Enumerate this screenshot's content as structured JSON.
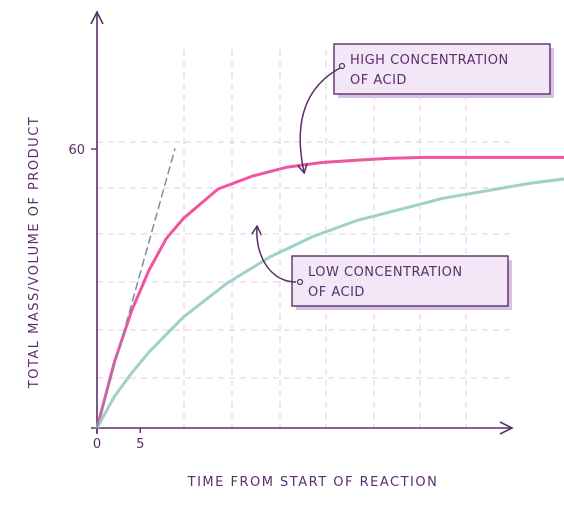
{
  "chart_data": {
    "type": "line",
    "title": "",
    "xlabel": "TIME FROM START OF REACTION",
    "ylabel": "TOTAL MASS/VOLUME OF PRODUCT",
    "x_ticks": [
      "0",
      "5"
    ],
    "y_ticks": [
      "60"
    ],
    "xlim": [
      0,
      90
    ],
    "ylim": [
      0,
      93
    ],
    "grid": true,
    "series": [
      {
        "name": "HIGH CONCENTRATION OF ACID",
        "color": "#f0559e",
        "x": [
          0,
          2,
          4,
          6,
          8,
          10,
          14,
          18,
          22,
          26,
          30,
          34,
          38,
          75
        ],
        "y": [
          0,
          14.1,
          25.2,
          33.9,
          40.7,
          45.1,
          51.4,
          54.2,
          56.1,
          57.1,
          57.6,
          58.0,
          58.2,
          58.2
        ]
      },
      {
        "name": "LOW CONCENTRATION OF ACID",
        "color": "#9fd1c9",
        "x": [
          0,
          2,
          4,
          6,
          10,
          15,
          20,
          25,
          30,
          40,
          50,
          60,
          75
        ],
        "y": [
          0,
          6.7,
          11.8,
          16.3,
          23.9,
          31.1,
          36.8,
          41.2,
          44.6,
          49.4,
          52.6,
          55.0,
          58.2
        ]
      },
      {
        "name": "",
        "color": "#7a8ca0",
        "style": "dashed",
        "x": [
          0,
          9
        ],
        "y": [
          0,
          60
        ]
      }
    ],
    "annotations": [
      {
        "lines": [
          "HIGH CONCENTRATION",
          "OF ACID"
        ],
        "target_series": 0
      },
      {
        "lines": [
          "LOW CONCENTRATION",
          "OF ACID"
        ],
        "target_series": 1
      }
    ]
  }
}
